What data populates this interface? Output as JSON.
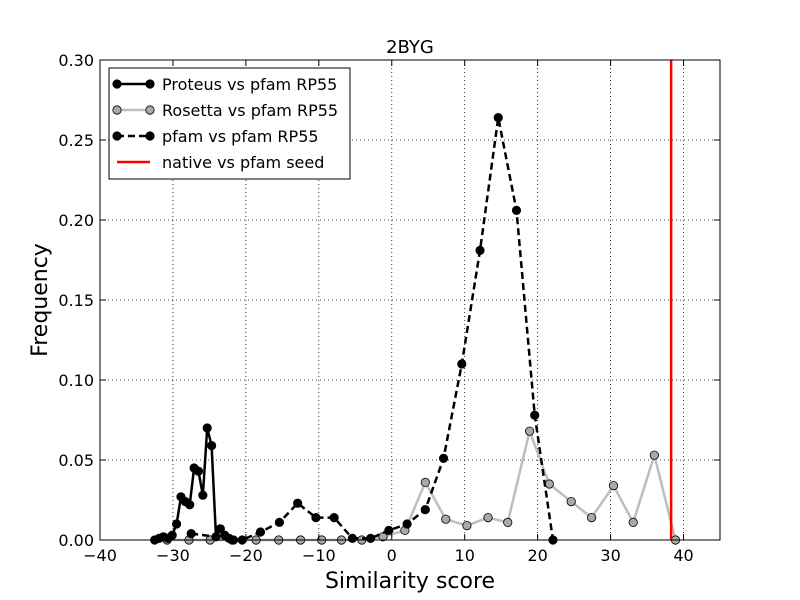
{
  "chart_data": {
    "type": "line",
    "title": "2BYG",
    "xlabel": "Similarity score",
    "ylabel": "Frequency",
    "xlim": [
      -40,
      45
    ],
    "ylim": [
      0.0,
      0.3
    ],
    "x_ticks": [
      -40,
      -30,
      -20,
      -10,
      0,
      10,
      20,
      30,
      40
    ],
    "x_tick_labels": [
      "−40",
      "−30",
      "−20",
      "−10",
      "0",
      "10",
      "20",
      "30",
      "40"
    ],
    "y_ticks": [
      0.0,
      0.05,
      0.1,
      0.15,
      0.2,
      0.25,
      0.3
    ],
    "y_tick_labels": [
      "0.00",
      "0.05",
      "0.10",
      "0.15",
      "0.20",
      "0.25",
      "0.30"
    ],
    "grid": true,
    "legend_position": "top-left",
    "series": [
      {
        "name": "Proteus vs pfam RP55",
        "style": "solid",
        "line_color": "#000000",
        "marker_color": "#000000",
        "x": [
          -32.5,
          -31.9,
          -31.3,
          -30.7,
          -30.1,
          -29.5,
          -28.9,
          -28.3,
          -27.7,
          -27.1,
          -26.5,
          -25.9,
          -25.3,
          -24.7,
          -24.1,
          -23.5,
          -22.9,
          -22.3,
          -21.7
        ],
        "y": [
          0.0,
          0.001,
          0.002,
          0.001,
          0.003,
          0.01,
          0.027,
          0.024,
          0.022,
          0.045,
          0.043,
          0.028,
          0.07,
          0.059,
          0.002,
          0.007,
          0.003,
          0.001,
          0.0
        ]
      },
      {
        "name": "Rosetta vs pfam RP55",
        "style": "solid",
        "line_color": "#bebebe",
        "marker_color": "#a9a9a9",
        "x": [
          -30.8,
          -27.8,
          -24.9,
          -21.9,
          -18.6,
          -15.5,
          -12.5,
          -9.6,
          -6.9,
          -4.1,
          -1.2,
          1.8,
          4.6,
          7.4,
          10.3,
          13.2,
          15.9,
          18.9,
          21.6,
          24.6,
          27.4,
          30.4,
          33.1,
          36.0,
          38.9
        ],
        "y": [
          0.0,
          0.0,
          0.0,
          0.0,
          0.0,
          0.0,
          0.0,
          0.0,
          0.0,
          0.0,
          0.002,
          0.006,
          0.036,
          0.013,
          0.009,
          0.014,
          0.011,
          0.068,
          0.035,
          0.024,
          0.014,
          0.034,
          0.011,
          0.053,
          0.0
        ]
      },
      {
        "name": "pfam vs pfam RP55",
        "style": "dashed",
        "line_color": "#000000",
        "marker_color": "#000000",
        "x": [
          -27.5,
          -20.5,
          -18.0,
          -15.4,
          -12.9,
          -10.4,
          -7.9,
          -5.4,
          -2.9,
          -0.4,
          2.1,
          4.6,
          7.1,
          9.6,
          12.1,
          14.6,
          17.1,
          19.6,
          22.1
        ],
        "y": [
          0.004,
          0.0,
          0.005,
          0.011,
          0.023,
          0.014,
          0.014,
          0.001,
          0.001,
          0.006,
          0.01,
          0.019,
          0.051,
          0.11,
          0.181,
          0.264,
          0.206,
          0.078,
          0.0
        ]
      }
    ],
    "vlines": [
      {
        "name": "native vs pfam seed",
        "x": 38.3,
        "color": "#ff0000"
      }
    ]
  }
}
